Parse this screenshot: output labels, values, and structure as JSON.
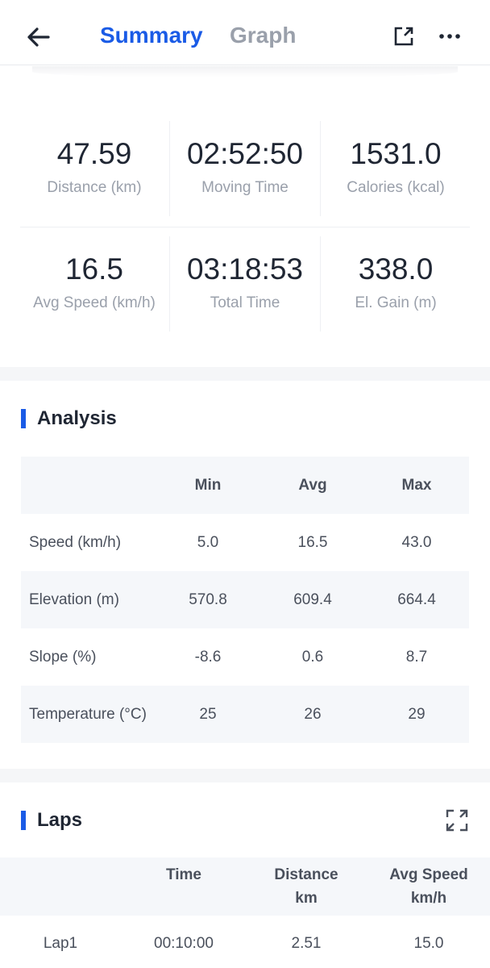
{
  "header": {
    "tabs": [
      {
        "label": "Summary",
        "active": true
      },
      {
        "label": "Graph",
        "active": false
      }
    ],
    "back_icon": "arrow-left-icon",
    "share_icon": "external-link-icon",
    "more_icon": "more-horizontal-icon"
  },
  "stats": [
    {
      "value": "47.59",
      "label": "Distance (km)"
    },
    {
      "value": "02:52:50",
      "label": "Moving Time"
    },
    {
      "value": "1531.0",
      "label": "Calories (kcal)"
    },
    {
      "value": "16.5",
      "label": "Avg Speed (km/h)"
    },
    {
      "value": "03:18:53",
      "label": "Total Time"
    },
    {
      "value": "338.0",
      "label": "El. Gain (m)"
    }
  ],
  "analysis": {
    "title": "Analysis",
    "columns": [
      "Min",
      "Avg",
      "Max"
    ],
    "rows": [
      {
        "label": "Speed (km/h)",
        "min": "5.0",
        "avg": "16.5",
        "max": "43.0"
      },
      {
        "label": "Elevation (m)",
        "min": "570.8",
        "avg": "609.4",
        "max": "664.4"
      },
      {
        "label": "Slope (%)",
        "min": "-8.6",
        "avg": "0.6",
        "max": "8.7"
      },
      {
        "label": "Temperature (°C)",
        "min": "25",
        "avg": "26",
        "max": "29"
      }
    ]
  },
  "laps": {
    "title": "Laps",
    "expand_icon": "expand-icon",
    "columns": [
      {
        "label": "Time",
        "unit": ""
      },
      {
        "label": "Distance",
        "unit": "km"
      },
      {
        "label": "Avg Speed",
        "unit": "km/h"
      }
    ],
    "rows": [
      {
        "lap": "Lap1",
        "time": "00:10:00",
        "distance": "2.51",
        "avg_speed": "15.0"
      }
    ]
  },
  "colors": {
    "accent": "#1a5be6"
  }
}
